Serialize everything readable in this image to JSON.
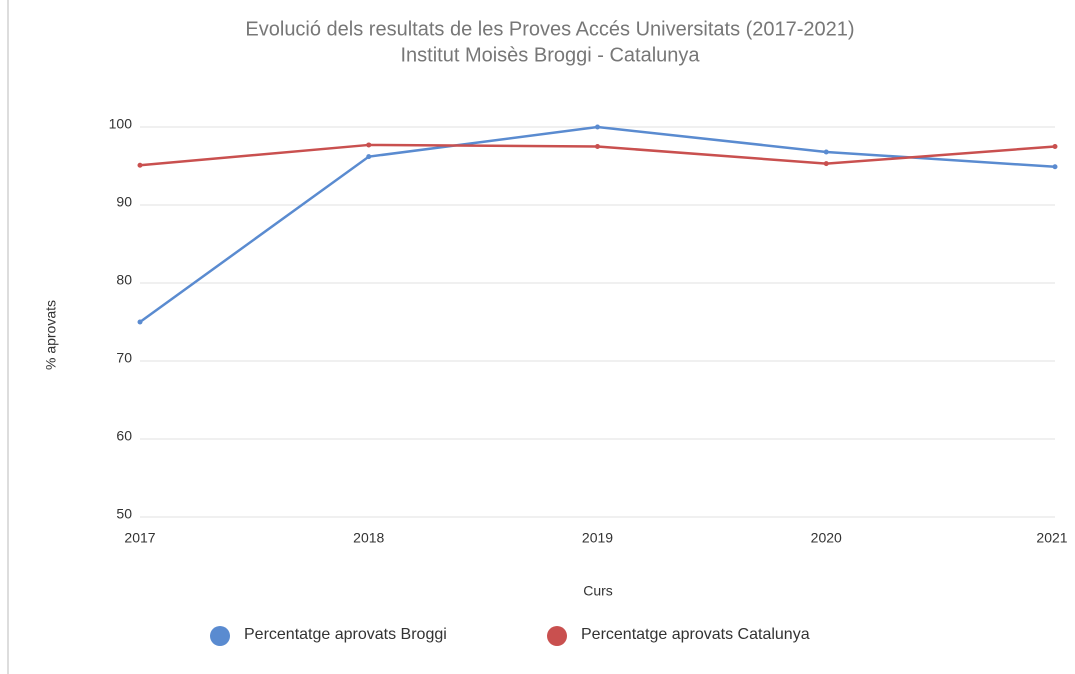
{
  "chart_data": {
    "type": "line",
    "title": "Evolució dels resultats de les Proves Accés Universitats (2017-2021)",
    "subtitle": "Institut Moisès Broggi - Catalunya",
    "x_label": "Curs",
    "y_label": "% aprovats",
    "x": [
      2017,
      2018,
      2019,
      2020,
      2021
    ],
    "xlim": [
      2017,
      2021
    ],
    "xticks": [
      2017,
      2018,
      2019,
      2020,
      2021
    ],
    "ylim": [
      50,
      100
    ],
    "yticks": [
      50,
      60,
      70,
      80,
      90,
      100
    ],
    "grid": true,
    "legend": "bottom",
    "series": [
      {
        "name": "Percentatge aprovats Broggi",
        "color": "#5a8bd0",
        "values": [
          75,
          96.2,
          100,
          96.8,
          94.9
        ]
      },
      {
        "name": "Percentatge aprovats Catalunya",
        "color": "#c9504f",
        "values": [
          95.1,
          97.7,
          97.5,
          95.3,
          97.5
        ]
      }
    ]
  }
}
